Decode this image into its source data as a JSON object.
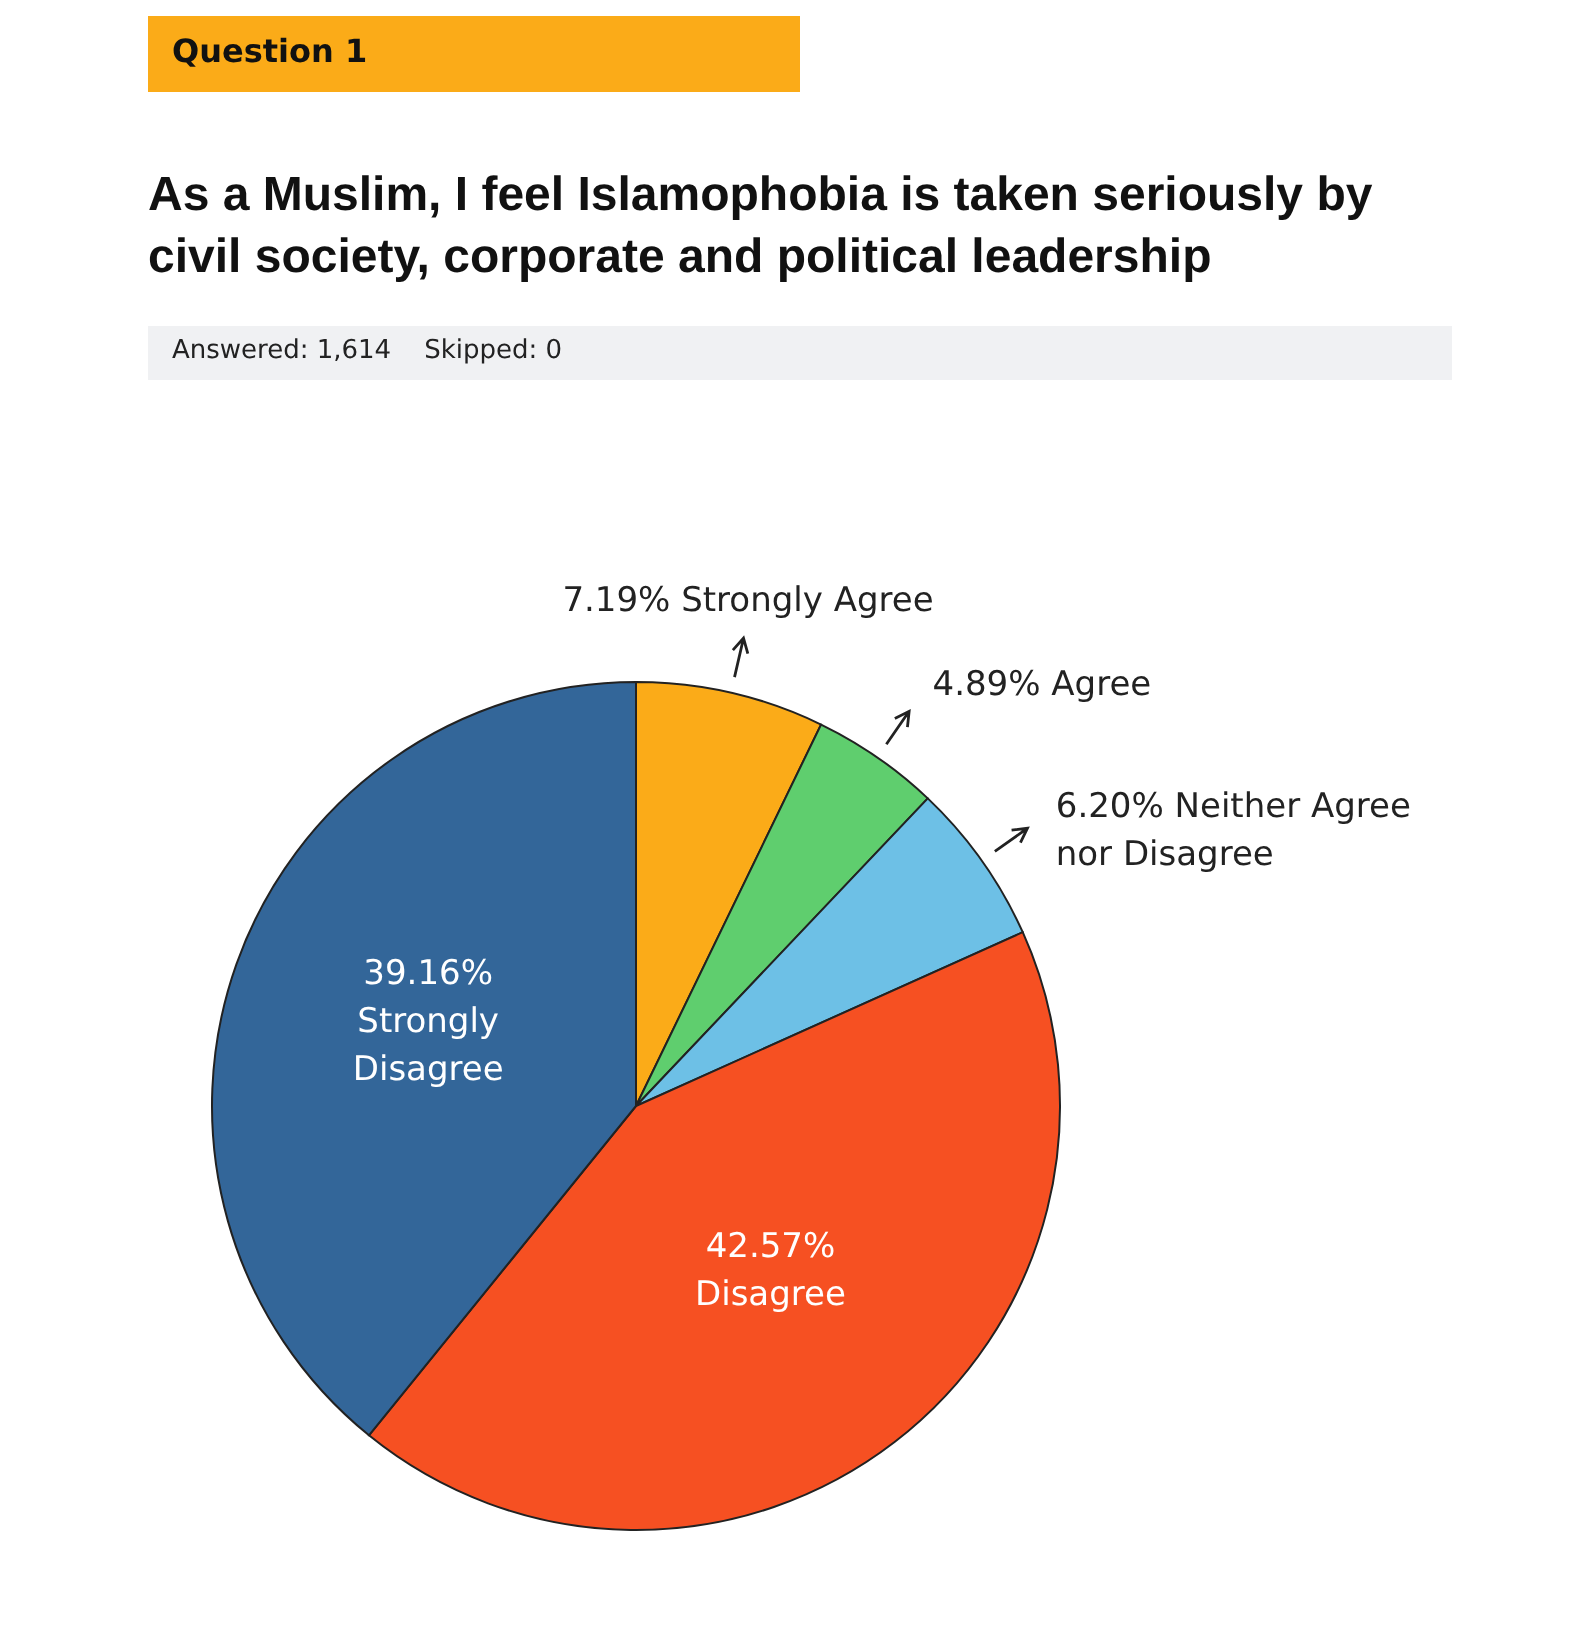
{
  "chart_data": {
    "type": "pie",
    "title": "As a Muslim, I feel Islamophobia is taken seriously by civil society, corporate and political leadership",
    "subtitle": "Answered: 1,614    Skipped: 0",
    "annotations": [
      "Question 1"
    ],
    "categories": [
      "Strongly Agree",
      "Agree",
      "Neither Agree nor Disagree",
      "Disagree",
      "Strongly Disagree"
    ],
    "values": [
      7.19,
      4.89,
      6.2,
      42.57,
      39.16
    ],
    "value_labels": [
      "7.19%",
      "4.89%",
      "6.20%",
      "42.57%",
      "39.16%"
    ],
    "colors": [
      "#fbab18",
      "#5fce6e",
      "#6dc0e6",
      "#f65022",
      "#336699"
    ]
  }
}
